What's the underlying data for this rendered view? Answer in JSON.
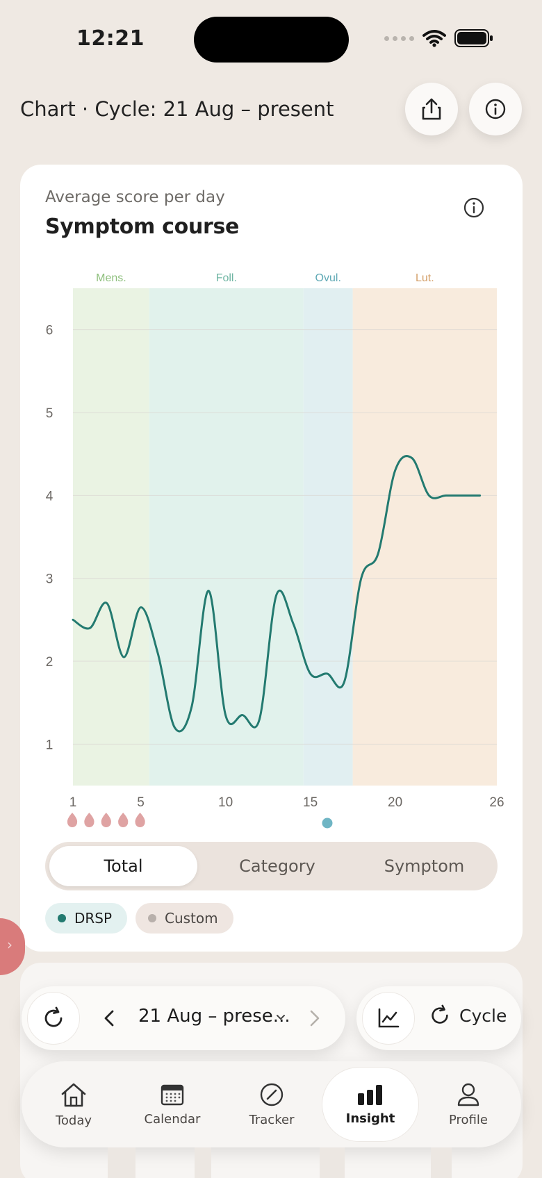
{
  "status_bar": {
    "time": "12:21"
  },
  "header": {
    "title": "Chart · Cycle: 21 Aug – present",
    "share_icon": "share-icon",
    "info_icon": "info-icon"
  },
  "card": {
    "subtitle": "Average score per day",
    "title": "Symptom course"
  },
  "chart_data": {
    "type": "line",
    "title": "Symptom course",
    "subtitle": "Average score per day",
    "x_ticks": [
      1,
      5,
      10,
      15,
      20,
      26
    ],
    "y_ticks": [
      1,
      2,
      3,
      4,
      5,
      6
    ],
    "xlim": [
      1,
      26
    ],
    "ylim": [
      0.5,
      6.5
    ],
    "grid": true,
    "phases": [
      {
        "label": "Mens.",
        "start": 1,
        "end": 5.5,
        "color": "#eaf3e3",
        "label_color": "#8dbf7c"
      },
      {
        "label": "Foll.",
        "start": 5.5,
        "end": 14.6,
        "color": "#e1f2ec",
        "label_color": "#6fb5a3"
      },
      {
        "label": "Ovul.",
        "start": 14.6,
        "end": 17.5,
        "color": "#e1eff1",
        "label_color": "#5fa9b5"
      },
      {
        "label": "Lut.",
        "start": 17.5,
        "end": 26,
        "color": "#f8ebdd",
        "label_color": "#d4a06a"
      }
    ],
    "series": [
      {
        "color": "#237a70",
        "x": [
          1,
          2,
          3,
          4,
          5,
          6,
          7,
          8,
          9,
          10,
          11,
          12,
          13,
          14,
          15,
          16,
          17,
          18,
          19,
          20,
          21,
          22,
          23,
          24,
          25
        ],
        "y": [
          2.5,
          2.4,
          2.7,
          2.05,
          2.65,
          2.1,
          1.2,
          1.45,
          2.85,
          1.35,
          1.35,
          1.3,
          2.8,
          2.45,
          1.85,
          1.85,
          1.75,
          3.0,
          3.3,
          4.3,
          4.45,
          4.0,
          4.0,
          4.0,
          4.0
        ]
      }
    ],
    "period_days": [
      1,
      2,
      3,
      4,
      5
    ],
    "ovulation_day": 16
  },
  "segmented": {
    "items": [
      "Total",
      "Category",
      "Symptom"
    ],
    "selected": "Total"
  },
  "chips": [
    {
      "label": "DRSP",
      "color": "#237a70",
      "bg": "#e3f1f0"
    },
    {
      "label": "Custom",
      "color": "#b8b0ab",
      "bg": "#efe6e1"
    }
  ],
  "controls": {
    "refresh_icon": "refresh-icon",
    "range_label": "21 Aug – prese...",
    "chart_icon": "line-chart-icon",
    "cycle_label": "Cycle"
  },
  "tabbar": {
    "items": [
      {
        "label": "Today",
        "icon": "home-icon"
      },
      {
        "label": "Calendar",
        "icon": "calendar-icon"
      },
      {
        "label": "Tracker",
        "icon": "tracker-icon"
      },
      {
        "label": "Insight",
        "icon": "insight-bars-icon"
      },
      {
        "label": "Profile",
        "icon": "profile-icon"
      }
    ],
    "active": "Insight"
  },
  "colors": {
    "background": "#efe9e3",
    "accent": "#237a70",
    "period": "#d98f8f",
    "ovulation": "#5fa9b5"
  }
}
